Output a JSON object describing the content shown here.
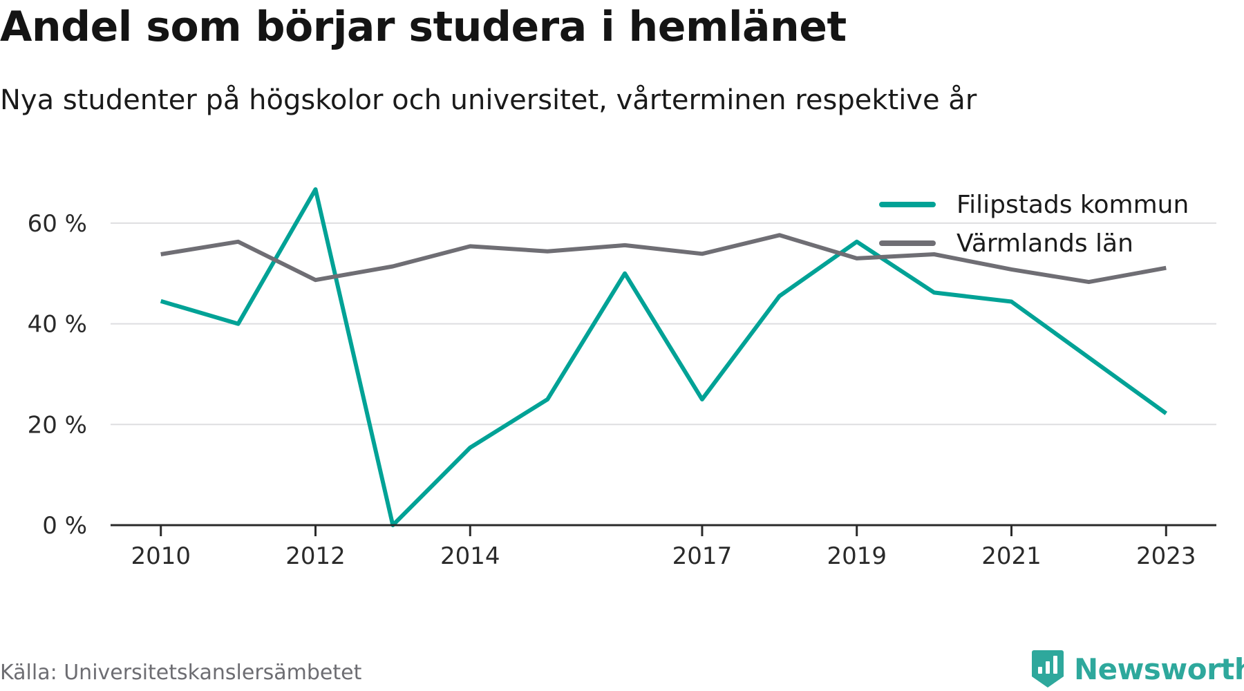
{
  "title": "Andel som börjar studera i hemlänet",
  "subtitle": "Nya studenter på högskolor och universitet, vårterminen respektive år",
  "source": "Källa: Universitetskanslersämbetet",
  "brand": {
    "name": "Newsworthy",
    "logo_icon": "bar-chart-badge-icon",
    "color": "#2ea89c"
  },
  "chart_data": {
    "type": "line",
    "x": [
      2010,
      2011,
      2012,
      2013,
      2014,
      2015,
      2016,
      2017,
      2018,
      2019,
      2020,
      2021,
      2022,
      2023
    ],
    "x_tick_labels": [
      "2010",
      "2012",
      "2014",
      "2017",
      "2019",
      "2021",
      "2023"
    ],
    "x_tick_values": [
      2010,
      2012,
      2014,
      2017,
      2019,
      2021,
      2023
    ],
    "xlim": [
      2009.35,
      2023.65
    ],
    "ylim": [
      0,
      70
    ],
    "y_ticks": [
      0,
      20,
      40,
      60
    ],
    "y_tick_labels": [
      "0 %",
      "20 %",
      "40 %",
      "60 %"
    ],
    "grid": true,
    "legend_position": "top-right",
    "series": [
      {
        "name": "Filipstads kommun",
        "color": "#00a296",
        "values": [
          44.5,
          40,
          66.7,
          0,
          15.4,
          25,
          50,
          25,
          45.5,
          56.3,
          46.2,
          44.4,
          33.3,
          22.2
        ]
      },
      {
        "name": "Värmlands län",
        "color": "#6f6e74",
        "values": [
          53.8,
          56.3,
          48.7,
          51.4,
          55.4,
          54.4,
          55.6,
          53.9,
          57.6,
          53,
          53.8,
          50.8,
          48.3,
          51.1
        ]
      }
    ]
  }
}
